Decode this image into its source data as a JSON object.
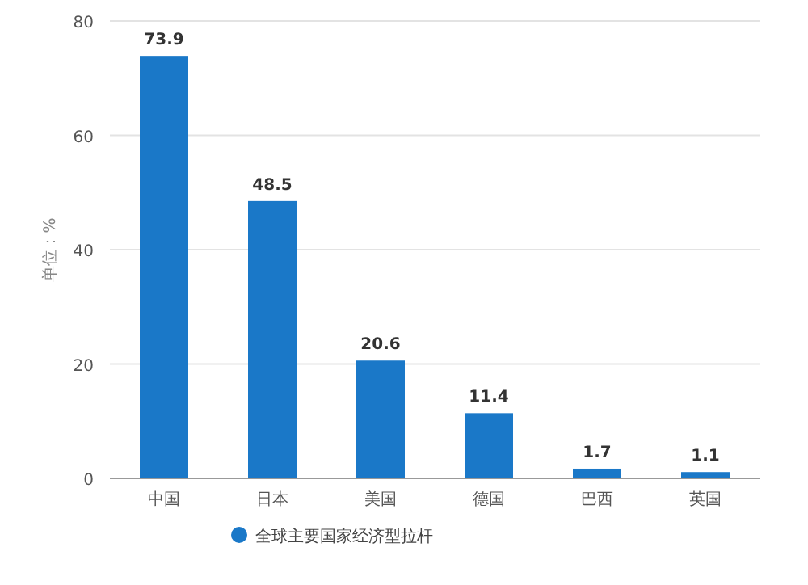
{
  "chart_data": {
    "type": "bar",
    "ylabel": "单位：%",
    "categories": [
      "中国",
      "日本",
      "美国",
      "德国",
      "巴西",
      "英国"
    ],
    "series": [
      {
        "name": "全球主要国家经济型拉杆",
        "color": "#1a78c8",
        "values": [
          73.9,
          48.5,
          20.6,
          11.4,
          1.7,
          1.1
        ]
      }
    ],
    "ylim": [
      0,
      80
    ],
    "yticks": [
      0,
      20,
      40,
      60,
      80
    ],
    "grid": "y",
    "legend": "bottom",
    "data_labels": true
  }
}
